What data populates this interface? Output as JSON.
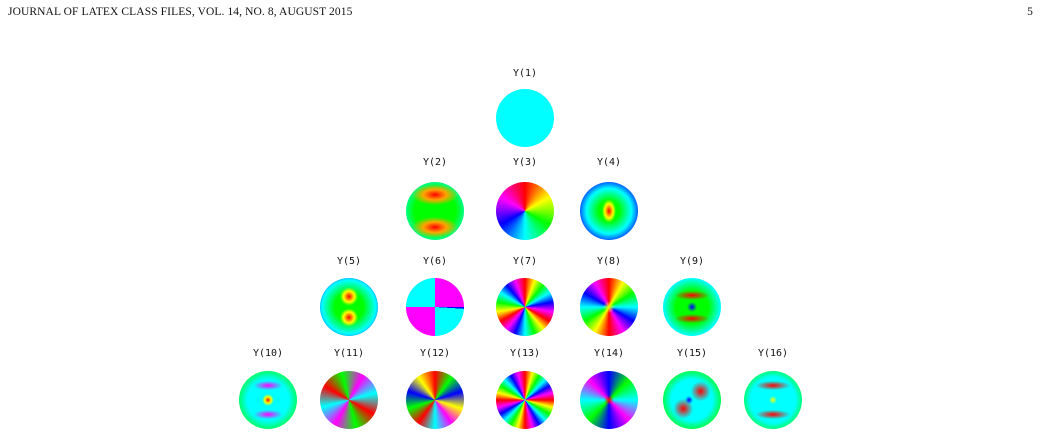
{
  "header": {
    "journal": "JOURNAL OF LATEX CLASS FILES, VOL. 14, NO. 8, AUGUST 2015",
    "page": "5"
  },
  "figure": {
    "rows": [
      [
        "Y(1)"
      ],
      [
        "Y(2)",
        "Y(3)",
        "Y(4)"
      ],
      [
        "Y(5)",
        "Y(6)",
        "Y(7)",
        "Y(8)",
        "Y(9)"
      ],
      [
        "Y(10)",
        "Y(11)",
        "Y(12)",
        "Y(13)",
        "Y(14)",
        "Y(15)",
        "Y(16)"
      ]
    ]
  }
}
